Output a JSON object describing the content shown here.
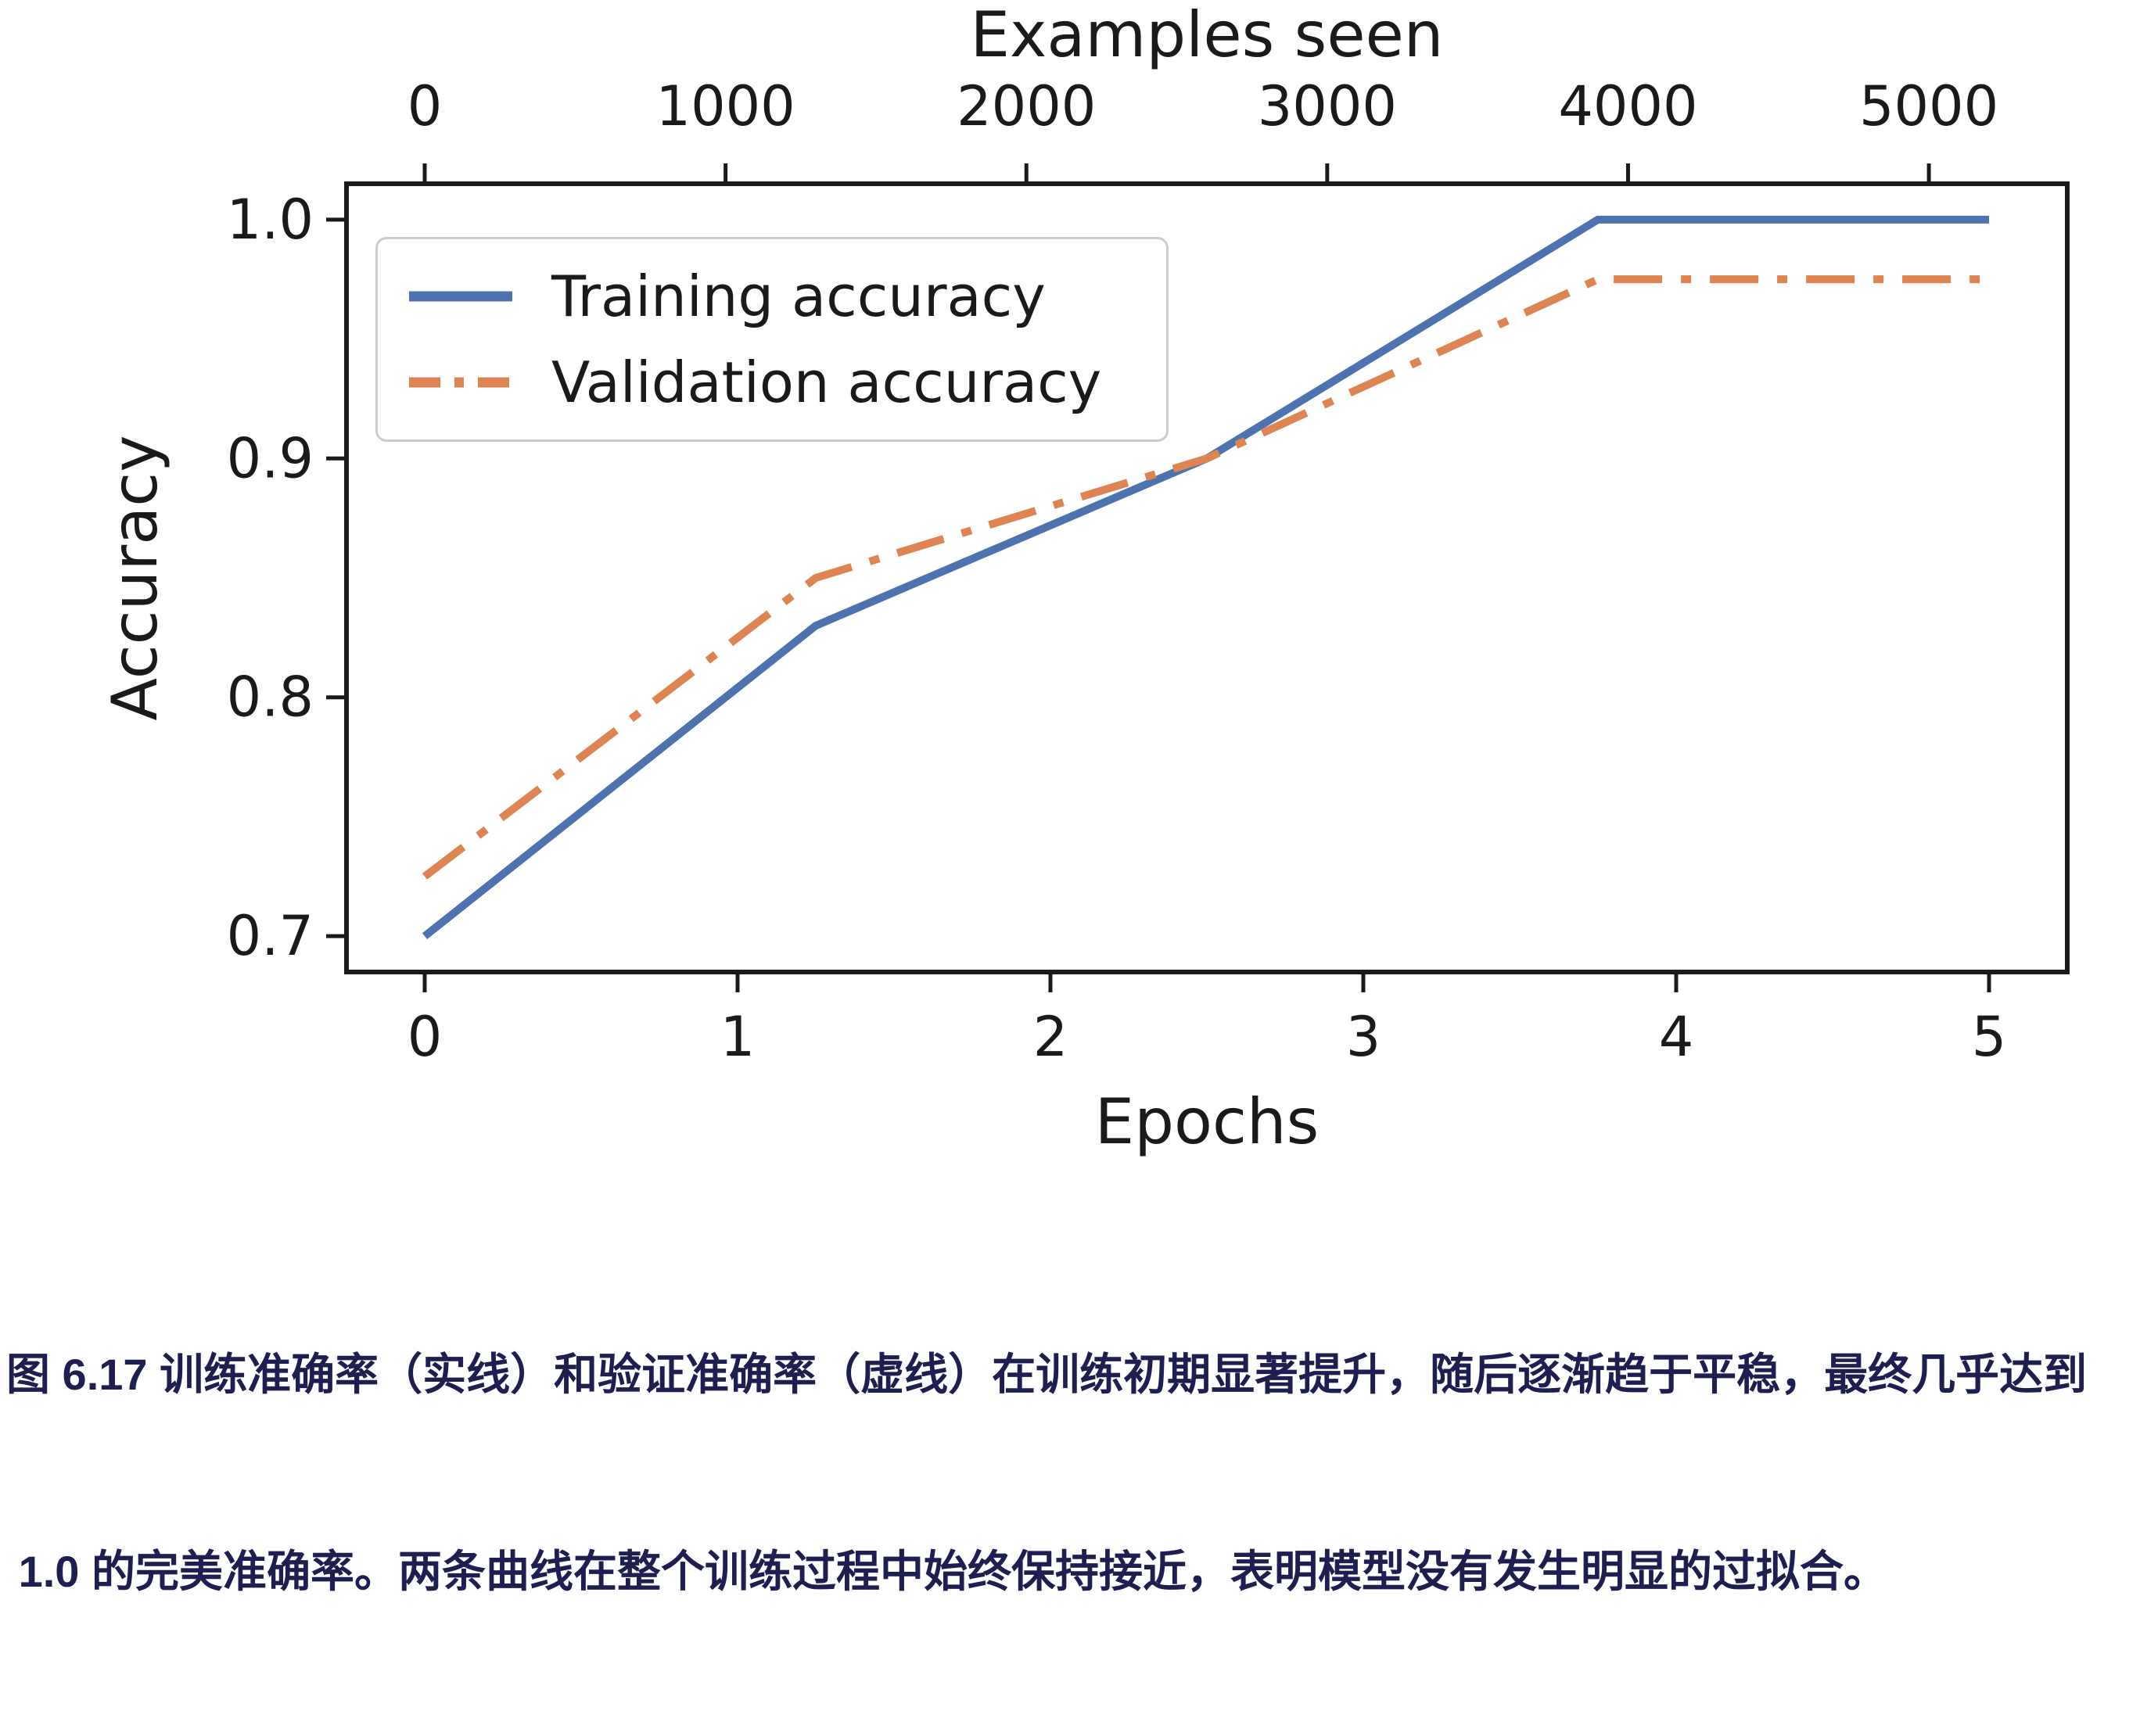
{
  "chart_data": {
    "type": "line",
    "top_axis": {
      "label": "Examples seen",
      "ticks": [
        0,
        1000,
        2000,
        3000,
        4000,
        5000
      ],
      "range": [
        -260,
        5460
      ]
    },
    "x_axis": {
      "label": "Epochs",
      "ticks": [
        0,
        1,
        2,
        3,
        4,
        5
      ],
      "range": [
        -0.25,
        5.25
      ]
    },
    "y_axis": {
      "label": "Accuracy",
      "tick_labels": [
        "0.7",
        "0.8",
        "0.9",
        "1.0"
      ],
      "tick_values": [
        0.7,
        0.8,
        0.9,
        1.0
      ],
      "range": [
        0.685,
        1.015
      ]
    },
    "examples_per_epoch": 1040,
    "grid": false,
    "legend": {
      "position": "upper-left"
    },
    "series": [
      {
        "name": "Training accuracy",
        "color": "#4C72B0",
        "style": "solid",
        "x": [
          0,
          1.25,
          2.5,
          3.75,
          5
        ],
        "y": [
          0.7,
          0.83,
          0.9,
          1.0,
          1.0
        ]
      },
      {
        "name": "Validation accuracy",
        "color": "#DD8452",
        "style": "dashdot",
        "x": [
          0,
          1.25,
          2.5,
          3.75,
          5
        ],
        "y": [
          0.725,
          0.85,
          0.9,
          0.975,
          0.975
        ]
      }
    ],
    "spine_color": "#1a1a1a"
  },
  "caption": {
    "color": "#1e1e50",
    "line1": "图 6.17 训练准确率（实线）和验证准确率（虚线）在训练初期显著提升，随后逐渐趋于平稳，最终几乎达到",
    "line2": " 1.0 的完美准确率。两条曲线在整个训练过程中始终保持接近，表明模型没有发生明显的过拟合。"
  }
}
